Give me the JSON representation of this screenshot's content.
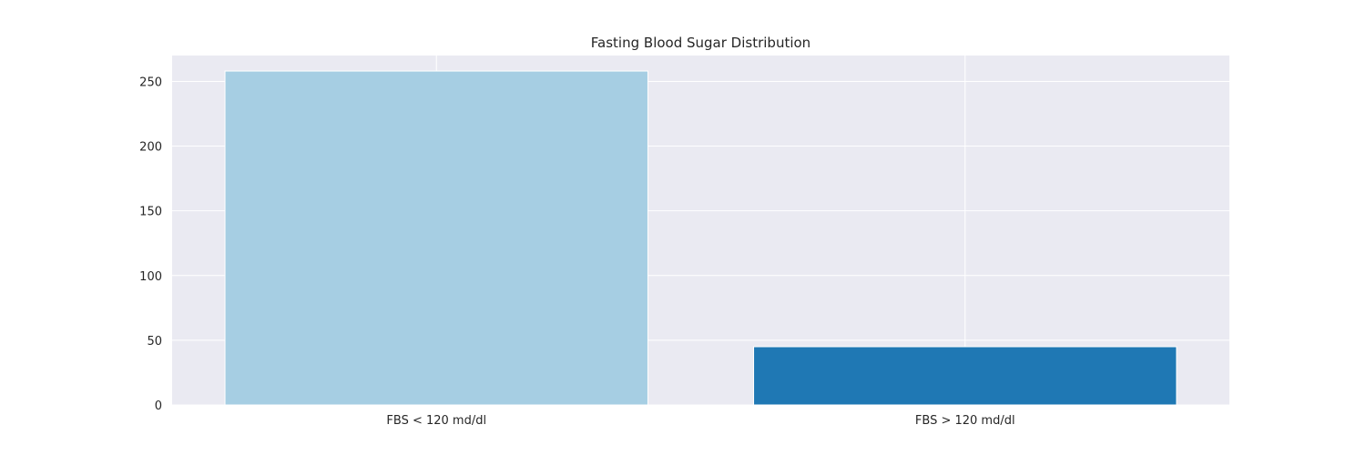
{
  "chart_data": {
    "type": "bar",
    "title": "Fasting Blood Sugar Distribution",
    "xlabel": "",
    "ylabel": "",
    "categories": [
      "FBS < 120 md/dl",
      "FBS > 120 md/dl"
    ],
    "values": [
      258,
      45
    ],
    "bar_colors": [
      "#a6cee3",
      "#1f78b4"
    ],
    "ylim": [
      0,
      270
    ],
    "yticks": [
      0,
      50,
      100,
      150,
      200,
      250
    ],
    "grid": true,
    "legend": "none",
    "background_color": "#eaeaf2",
    "grid_color": "#ffffff"
  }
}
